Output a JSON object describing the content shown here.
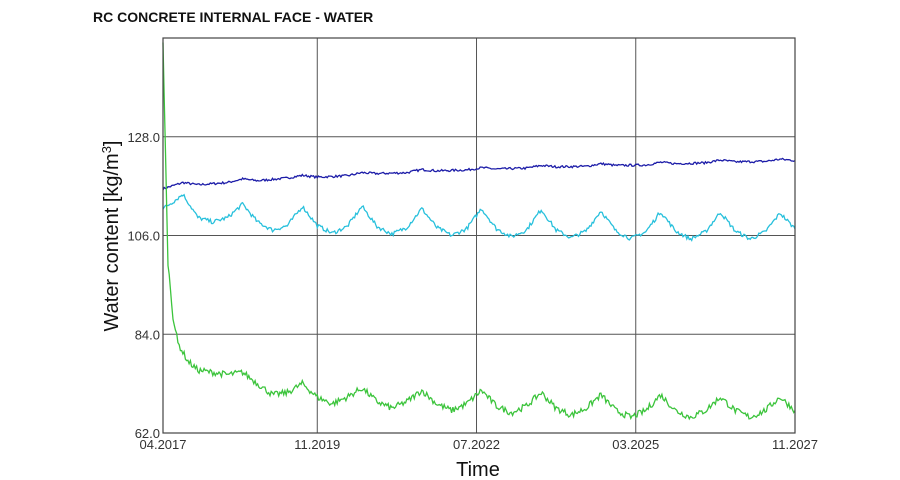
{
  "chart_data": {
    "type": "line",
    "title": "RC CONCRETE INTERNAL FACE - WATER",
    "xlabel": "Time",
    "ylabel": "Water content [kg/m³]",
    "xlim": [
      "2017-04",
      "2027-11"
    ],
    "ylim": [
      62,
      150
    ],
    "x_ticks": [
      {
        "date": "2017-04",
        "label": "04.2017"
      },
      {
        "date": "2019-11",
        "label": "11.2019"
      },
      {
        "date": "2022-07",
        "label": "07.2022"
      },
      {
        "date": "2025-03",
        "label": "03.2025"
      },
      {
        "date": "2027-11",
        "label": "11.2027"
      }
    ],
    "y_ticks": [
      {
        "value": 62,
        "label": "62.0"
      },
      {
        "value": 84,
        "label": "84.0"
      },
      {
        "value": 106,
        "label": "106.0"
      },
      {
        "value": 128,
        "label": "128.0"
      }
    ],
    "grid": true,
    "series": [
      {
        "color": "#1c1ca8",
        "points": [
          [
            "2017-04",
            116.4
          ],
          [
            "2017-08",
            117.8
          ],
          [
            "2017-11",
            117.3
          ],
          [
            "2018-05",
            117.8
          ],
          [
            "2018-08",
            118.6
          ],
          [
            "2018-11",
            118.2
          ],
          [
            "2019-05",
            118.8
          ],
          [
            "2019-08",
            119.4
          ],
          [
            "2019-11",
            119.0
          ],
          [
            "2020-05",
            119.3
          ],
          [
            "2020-08",
            120.0
          ],
          [
            "2020-11",
            119.8
          ],
          [
            "2021-05",
            120.0
          ],
          [
            "2021-08",
            120.7
          ],
          [
            "2021-11",
            120.4
          ],
          [
            "2022-05",
            120.6
          ],
          [
            "2022-08",
            121.1
          ],
          [
            "2022-11",
            120.8
          ],
          [
            "2023-05",
            121.0
          ],
          [
            "2023-08",
            121.6
          ],
          [
            "2023-11",
            121.3
          ],
          [
            "2024-05",
            121.4
          ],
          [
            "2024-08",
            122.0
          ],
          [
            "2024-11",
            121.6
          ],
          [
            "2025-05",
            121.7
          ],
          [
            "2025-08",
            122.3
          ],
          [
            "2025-11",
            122.0
          ],
          [
            "2026-05",
            122.2
          ],
          [
            "2026-08",
            122.8
          ],
          [
            "2026-11",
            122.4
          ],
          [
            "2027-05",
            122.5
          ],
          [
            "2027-08",
            123.0
          ],
          [
            "2027-11",
            122.7
          ]
        ]
      },
      {
        "color": "#28c0dc",
        "points": [
          [
            "2017-04",
            112.0
          ],
          [
            "2017-06",
            113.5
          ],
          [
            "2017-08",
            115.2
          ],
          [
            "2017-11",
            110.0
          ],
          [
            "2018-02",
            109.0
          ],
          [
            "2018-05",
            110.0
          ],
          [
            "2018-08",
            113.0
          ],
          [
            "2018-11",
            109.0
          ],
          [
            "2019-02",
            107.2
          ],
          [
            "2019-05",
            108.2
          ],
          [
            "2019-08",
            112.5
          ],
          [
            "2019-11",
            108.2
          ],
          [
            "2020-02",
            106.5
          ],
          [
            "2020-05",
            108.0
          ],
          [
            "2020-08",
            112.5
          ],
          [
            "2020-11",
            108.0
          ],
          [
            "2021-02",
            106.3
          ],
          [
            "2021-05",
            107.8
          ],
          [
            "2021-08",
            112.0
          ],
          [
            "2021-11",
            107.8
          ],
          [
            "2022-02",
            106.0
          ],
          [
            "2022-05",
            107.5
          ],
          [
            "2022-08",
            112.0
          ],
          [
            "2022-11",
            107.5
          ],
          [
            "2023-02",
            105.7
          ],
          [
            "2023-05",
            107.2
          ],
          [
            "2023-08",
            111.8
          ],
          [
            "2023-11",
            107.2
          ],
          [
            "2024-02",
            105.5
          ],
          [
            "2024-05",
            107.0
          ],
          [
            "2024-08",
            111.5
          ],
          [
            "2024-11",
            107.0
          ],
          [
            "2025-02",
            105.3
          ],
          [
            "2025-05",
            106.8
          ],
          [
            "2025-08",
            111.3
          ],
          [
            "2025-11",
            107.0
          ],
          [
            "2026-02",
            105.2
          ],
          [
            "2026-05",
            106.8
          ],
          [
            "2026-08",
            111.2
          ],
          [
            "2026-11",
            107.0
          ],
          [
            "2027-02",
            105.2
          ],
          [
            "2027-05",
            106.8
          ],
          [
            "2027-08",
            111.0
          ],
          [
            "2027-11",
            107.5
          ]
        ]
      },
      {
        "color": "#3cc43c",
        "points": [
          [
            "2017-04",
            149.0
          ],
          [
            "2017-05",
            100.0
          ],
          [
            "2017-06",
            88.0
          ],
          [
            "2017-07",
            82.0
          ],
          [
            "2017-09",
            78.0
          ],
          [
            "2017-11",
            76.0
          ],
          [
            "2018-02",
            75.5
          ],
          [
            "2018-05",
            75.0
          ],
          [
            "2018-08",
            75.5
          ],
          [
            "2018-11",
            73.0
          ],
          [
            "2019-02",
            70.5
          ],
          [
            "2019-05",
            71.0
          ],
          [
            "2019-08",
            73.0
          ],
          [
            "2019-11",
            70.0
          ],
          [
            "2020-02",
            68.5
          ],
          [
            "2020-05",
            70.0
          ],
          [
            "2020-08",
            72.0
          ],
          [
            "2020-11",
            69.0
          ],
          [
            "2021-02",
            67.5
          ],
          [
            "2021-05",
            69.0
          ],
          [
            "2021-08",
            71.5
          ],
          [
            "2021-11",
            68.5
          ],
          [
            "2022-02",
            67.0
          ],
          [
            "2022-05",
            68.5
          ],
          [
            "2022-08",
            71.5
          ],
          [
            "2022-11",
            68.0
          ],
          [
            "2023-02",
            66.5
          ],
          [
            "2023-05",
            68.0
          ],
          [
            "2023-08",
            71.0
          ],
          [
            "2023-11",
            67.5
          ],
          [
            "2024-02",
            66.0
          ],
          [
            "2024-05",
            67.5
          ],
          [
            "2024-08",
            70.5
          ],
          [
            "2024-11",
            67.0
          ],
          [
            "2025-02",
            65.5
          ],
          [
            "2025-05",
            67.0
          ],
          [
            "2025-08",
            70.5
          ],
          [
            "2025-11",
            67.0
          ],
          [
            "2026-02",
            65.5
          ],
          [
            "2026-05",
            67.0
          ],
          [
            "2026-08",
            70.0
          ],
          [
            "2026-11",
            67.0
          ],
          [
            "2027-02",
            65.5
          ],
          [
            "2027-05",
            67.0
          ],
          [
            "2027-08",
            70.0
          ],
          [
            "2027-11",
            67.0
          ]
        ]
      }
    ]
  }
}
